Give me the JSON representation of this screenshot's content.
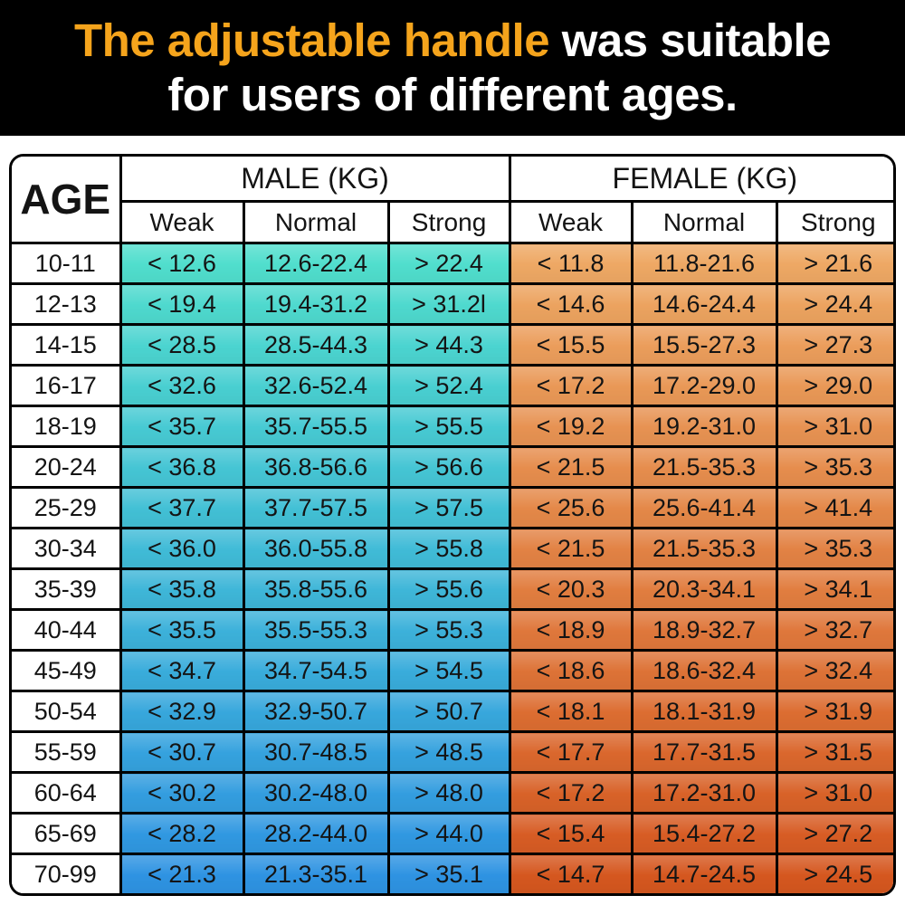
{
  "banner": {
    "highlight": "The adjustable handle",
    "rest_line1": " was suitable",
    "line2": "for users of different ages.",
    "bg_color": "#000000",
    "highlight_color": "#F5A41C",
    "text_color": "#FFFFFF"
  },
  "chart_data": {
    "type": "table",
    "title": "The adjustable handle was suitable for users of different ages.",
    "corner_header": "AGE",
    "col_groups": [
      {
        "label": "MALE (KG)"
      },
      {
        "label": "FEMALE (KG)"
      }
    ],
    "sub_headers": [
      "Weak",
      "Normal",
      "Strong"
    ],
    "rows": [
      {
        "age": "10-11",
        "male": [
          "< 12.6",
          "12.6-22.4",
          "> 22.4"
        ],
        "female": [
          "< 11.8",
          "11.8-21.6",
          "> 21.6"
        ],
        "male_bg": "#50DECD",
        "female_bg": "#EEA864"
      },
      {
        "age": "12-13",
        "male": [
          "< 19.4",
          "19.4-31.2",
          "> 31.2l"
        ],
        "female": [
          "< 14.6",
          "14.6-24.4",
          "> 24.4"
        ],
        "male_bg": "#4ED9CE",
        "female_bg": "#ECA35F"
      },
      {
        "age": "14-15",
        "male": [
          "< 28.5",
          "28.5-44.3",
          "> 44.3"
        ],
        "female": [
          "< 15.5",
          "15.5-27.3",
          "> 27.3"
        ],
        "male_bg": "#4BD4D0",
        "female_bg": "#EB9D5B"
      },
      {
        "age": "16-17",
        "male": [
          "< 32.6",
          "32.6-52.4",
          "> 52.4"
        ],
        "female": [
          "< 17.2",
          "17.2-29.0",
          "> 29.0"
        ],
        "male_bg": "#49CFD1",
        "female_bg": "#E99856"
      },
      {
        "age": "18-19",
        "male": [
          "< 35.7",
          "35.7-55.5",
          "> 55.5"
        ],
        "female": [
          "< 19.2",
          "19.2-31.0",
          "> 31.0"
        ],
        "male_bg": "#47CAD3",
        "female_bg": "#E79252"
      },
      {
        "age": "20-24",
        "male": [
          "< 36.8",
          "36.8-56.6",
          "> 56.6"
        ],
        "female": [
          "< 21.5",
          "21.5-35.3",
          "> 35.3"
        ],
        "male_bg": "#45C5D4",
        "female_bg": "#E68D4D"
      },
      {
        "age": "25-29",
        "male": [
          "< 37.7",
          "37.7-57.5",
          "> 57.5"
        ],
        "female": [
          "< 25.6",
          "25.6-41.4",
          "> 41.4"
        ],
        "male_bg": "#42C0D5",
        "female_bg": "#E48848"
      },
      {
        "age": "30-34",
        "male": [
          "< 36.0",
          "36.0-55.8",
          "> 55.8"
        ],
        "female": [
          "< 21.5",
          "21.5-35.3",
          "> 35.3"
        ],
        "male_bg": "#40BBD7",
        "female_bg": "#E28244"
      },
      {
        "age": "35-39",
        "male": [
          "< 35.8",
          "35.8-55.6",
          "> 55.6"
        ],
        "female": [
          "< 20.3",
          "20.3-34.1",
          "> 34.1"
        ],
        "male_bg": "#3EB6D8",
        "female_bg": "#E17D3F"
      },
      {
        "age": "40-44",
        "male": [
          "< 35.5",
          "35.5-55.3",
          "> 55.3"
        ],
        "female": [
          "< 18.9",
          "18.9-32.7",
          "> 32.7"
        ],
        "male_bg": "#3CB1DA",
        "female_bg": "#DF773B"
      },
      {
        "age": "45-49",
        "male": [
          "< 34.7",
          "34.7-54.5",
          "> 54.5"
        ],
        "female": [
          "< 18.6",
          "18.6-32.4",
          "> 32.4"
        ],
        "male_bg": "#39ACDB",
        "female_bg": "#DD7236"
      },
      {
        "age": "50-54",
        "male": [
          "< 32.9",
          "32.9-50.7",
          "> 50.7"
        ],
        "female": [
          "< 18.1",
          "18.1-31.9",
          "> 31.9"
        ],
        "male_bg": "#37A7DC",
        "female_bg": "#DC6D31"
      },
      {
        "age": "55-59",
        "male": [
          "< 30.7",
          "30.7-48.5",
          "> 48.5"
        ],
        "female": [
          "< 17.7",
          "17.7-31.5",
          "> 31.5"
        ],
        "male_bg": "#35A2DE",
        "female_bg": "#DA672D"
      },
      {
        "age": "60-64",
        "male": [
          "< 30.2",
          "30.2-48.0",
          "> 48.0"
        ],
        "female": [
          "< 17.2",
          "17.2-31.0",
          "> 31.0"
        ],
        "male_bg": "#339DDF",
        "female_bg": "#D86228"
      },
      {
        "age": "65-69",
        "male": [
          "< 28.2",
          "28.2-44.0",
          "> 44.0"
        ],
        "female": [
          "< 15.4",
          "15.4-27.2",
          "> 27.2"
        ],
        "male_bg": "#3098E1",
        "female_bg": "#D75C24"
      },
      {
        "age": "70-99",
        "male": [
          "< 21.3",
          "21.3-35.1",
          "> 35.1"
        ],
        "female": [
          "< 14.7",
          "14.7-24.5",
          "> 24.5"
        ],
        "male_bg": "#2E93E2",
        "female_bg": "#D5571F"
      }
    ],
    "colors": {
      "grid": "#000000",
      "header_bg": "#FFFFFF",
      "cell_text": "#141414",
      "male_top": "#50DECD",
      "male_bottom": "#2E93E2",
      "female_top": "#EEA864",
      "female_bottom": "#D5571F"
    },
    "legend_position": "none",
    "grid": true
  }
}
